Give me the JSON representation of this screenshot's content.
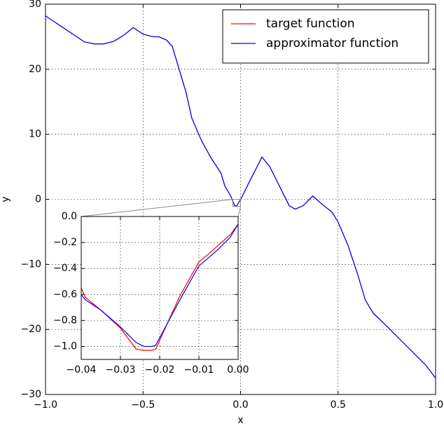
{
  "chart_data": [
    {
      "type": "line",
      "xlabel": "x",
      "ylabel": "y",
      "legend": "upper right",
      "grid": true,
      "xlim": [
        -1.0,
        1.0
      ],
      "ylim": [
        -30,
        30
      ],
      "xticks": [
        {
          "value": -1.0,
          "label": "−1.0"
        },
        {
          "value": -0.5,
          "label": "−0.5"
        },
        {
          "value": 0.0,
          "label": "0.0"
        },
        {
          "value": 0.5,
          "label": "0.5"
        },
        {
          "value": 1.0,
          "label": "1.0"
        }
      ],
      "yticks": [
        30,
        20,
        10,
        0,
        {
          "value": -10,
          "label": "−10"
        },
        {
          "value": -20,
          "label": "−20"
        },
        {
          "value": -30,
          "label": "−30"
        }
      ],
      "x": [
        -1.0,
        -0.9,
        -0.8,
        -0.75,
        -0.7,
        -0.65,
        -0.6,
        -0.55,
        -0.5,
        -0.45,
        -0.42,
        -0.38,
        -0.35,
        -0.32,
        -0.28,
        -0.25,
        -0.2,
        -0.15,
        -0.1,
        -0.08,
        -0.05,
        -0.03,
        -0.02,
        0.0,
        0.05,
        0.11,
        0.15,
        0.2,
        0.25,
        0.28,
        0.32,
        0.37,
        0.42,
        0.47,
        0.5,
        0.55,
        0.6,
        0.64,
        0.68,
        0.75,
        0.85,
        0.95,
        1.0
      ],
      "series": [
        {
          "name": "target function",
          "color": "#ff0000",
          "values": [
            28.2,
            26.2,
            24.2,
            23.9,
            23.9,
            24.3,
            25.2,
            26.4,
            25.4,
            25.0,
            25.0,
            24.5,
            23.5,
            20.5,
            16.5,
            12.5,
            9.0,
            6.3,
            4.0,
            2.0,
            0.5,
            -1.0,
            -1.0,
            -0.05,
            3.0,
            6.5,
            5.0,
            2.0,
            -1.0,
            -1.5,
            -1.0,
            0.5,
            -0.8,
            -2.0,
            -3.5,
            -7.0,
            -11.5,
            -15.5,
            -17.5,
            -19.5,
            -22.5,
            -25.5,
            -27.5
          ]
        },
        {
          "name": "approximator function",
          "color": "#0000ff",
          "values": [
            28.2,
            26.2,
            24.2,
            23.9,
            23.9,
            24.3,
            25.2,
            26.4,
            25.4,
            25.0,
            25.0,
            24.5,
            23.5,
            20.5,
            16.5,
            12.5,
            9.0,
            6.3,
            4.0,
            2.0,
            0.5,
            -1.0,
            -1.0,
            -0.05,
            3.0,
            6.5,
            5.0,
            2.0,
            -1.0,
            -1.5,
            -1.0,
            0.5,
            -0.8,
            -2.0,
            -3.5,
            -7.0,
            -11.5,
            -15.5,
            -17.5,
            -19.5,
            -22.5,
            -25.5,
            -27.5
          ]
        }
      ]
    },
    {
      "type": "line",
      "grid": true,
      "xlim": [
        -0.04,
        0.0
      ],
      "ylim": [
        -1.1,
        0.0
      ],
      "xticks": [
        {
          "value": -0.04,
          "label": "−0.04"
        },
        {
          "value": -0.03,
          "label": "−0.03"
        },
        {
          "value": -0.02,
          "label": "−0.02"
        },
        {
          "value": -0.01,
          "label": "−0.01"
        },
        {
          "value": 0.0,
          "label": "0.00"
        }
      ],
      "yticks": [
        {
          "value": 0.0,
          "label": "0.0"
        },
        {
          "value": -0.2,
          "label": "−0.2"
        },
        {
          "value": -0.4,
          "label": "−0.4"
        },
        {
          "value": -0.6,
          "label": "−0.6"
        },
        {
          "value": -0.8,
          "label": "−0.8"
        },
        {
          "value": -1.0,
          "label": "−1.0"
        }
      ],
      "x": [
        -0.04,
        -0.039,
        -0.035,
        -0.03,
        -0.026,
        -0.024,
        -0.022,
        -0.021,
        -0.015,
        -0.01,
        -0.008,
        -0.005,
        -0.002,
        0.0
      ],
      "series": [
        {
          "color": "#ff0000",
          "values": [
            -0.55,
            -0.62,
            -0.72,
            -0.86,
            -1.02,
            -1.03,
            -1.03,
            -1.02,
            -0.62,
            -0.35,
            -0.3,
            -0.22,
            -0.14,
            -0.06
          ]
        },
        {
          "color": "#0000ff",
          "values": [
            -0.6,
            -0.64,
            -0.72,
            -0.85,
            -0.97,
            -1.0,
            -1.0,
            -0.99,
            -0.65,
            -0.38,
            -0.33,
            -0.25,
            -0.16,
            -0.06
          ]
        }
      ]
    }
  ]
}
